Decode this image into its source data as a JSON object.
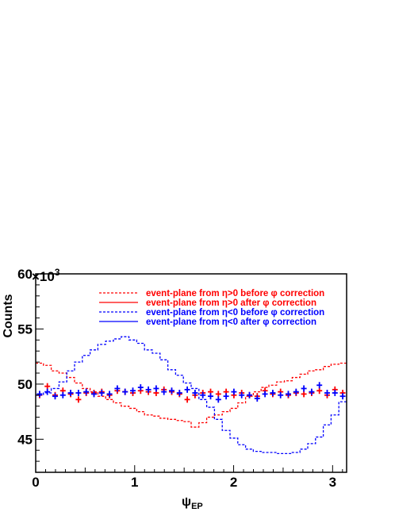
{
  "chart_data": {
    "type": "line",
    "ylabel": "Counts",
    "xlabel": "ψEP",
    "xlabel_main": "ψ",
    "xlabel_sub": "EP",
    "y_multiplier_label": "×10",
    "y_multiplier_exp": "3",
    "xlim": [
      0,
      3.14159
    ],
    "ylim": [
      42,
      60
    ],
    "x_ticks": [
      0,
      1,
      2,
      3
    ],
    "x_tick_labels": [
      "0",
      "1",
      "2",
      "3"
    ],
    "y_ticks": [
      45,
      50,
      55,
      60
    ],
    "y_tick_labels": [
      "45",
      "50",
      "55",
      "60"
    ],
    "grid": false,
    "legend_position": "top-right",
    "colors": {
      "red": "#ff0000",
      "blue": "#0000ff"
    },
    "bin_count": 40,
    "series": [
      {
        "name": "event-plane from η>0 before φ correction",
        "style": "dashed",
        "color": "#ff0000",
        "values": [
          51.9,
          51.7,
          51.2,
          51.0,
          50.6,
          50.1,
          49.6,
          49.3,
          48.9,
          48.6,
          48.3,
          48.0,
          47.8,
          47.5,
          47.2,
          47.1,
          46.9,
          46.8,
          46.7,
          46.6,
          46.1,
          46.5,
          47.0,
          47.2,
          47.5,
          47.8,
          48.3,
          48.9,
          49.3,
          49.7,
          49.9,
          50.2,
          50.3,
          50.6,
          50.9,
          51.2,
          51.3,
          51.6,
          51.8,
          51.9
        ]
      },
      {
        "name": "event-plane from η>0 after φ correction",
        "style": "markers",
        "color": "#ff0000",
        "values": [
          49.0,
          49.8,
          49.0,
          49.4,
          49.1,
          48.6,
          49.2,
          49.2,
          49.3,
          49.0,
          49.4,
          49.3,
          49.2,
          49.4,
          49.3,
          49.2,
          49.5,
          49.3,
          49.1,
          48.6,
          49.0,
          49.2,
          49.3,
          49.1,
          49.3,
          49.0,
          49.2,
          49.0,
          48.9,
          49.4,
          49.1,
          49.3,
          49.0,
          49.2,
          49.1,
          49.2,
          49.4,
          49.0,
          49.5,
          49.2
        ]
      },
      {
        "name": "event-plane from η<0 before φ correction",
        "style": "dashed",
        "color": "#0000ff",
        "values": [
          49.0,
          49.2,
          49.6,
          50.2,
          51.2,
          52.0,
          52.6,
          53.1,
          53.6,
          53.9,
          54.1,
          54.3,
          54.0,
          53.7,
          53.1,
          52.8,
          52.2,
          51.3,
          50.8,
          50.1,
          49.6,
          48.6,
          47.9,
          46.8,
          45.8,
          45.1,
          44.5,
          44.1,
          43.9,
          43.8,
          43.8,
          43.7,
          43.7,
          43.8,
          44.1,
          44.6,
          45.2,
          46.3,
          47.2,
          48.4
        ]
      },
      {
        "name": "event-plane from η<0 after φ correction",
        "style": "markers",
        "color": "#0000ff",
        "values": [
          49.1,
          49.3,
          48.9,
          49.0,
          49.2,
          49.2,
          49.3,
          49.1,
          49.2,
          49.1,
          49.6,
          49.3,
          49.4,
          49.7,
          49.5,
          49.6,
          49.3,
          49.4,
          49.2,
          49.5,
          49.2,
          49.0,
          48.9,
          48.6,
          48.9,
          49.3,
          49.0,
          49.0,
          48.7,
          49.1,
          49.2,
          49.0,
          49.1,
          49.3,
          49.6,
          49.3,
          49.9,
          49.2,
          49.2,
          48.9
        ]
      }
    ]
  }
}
